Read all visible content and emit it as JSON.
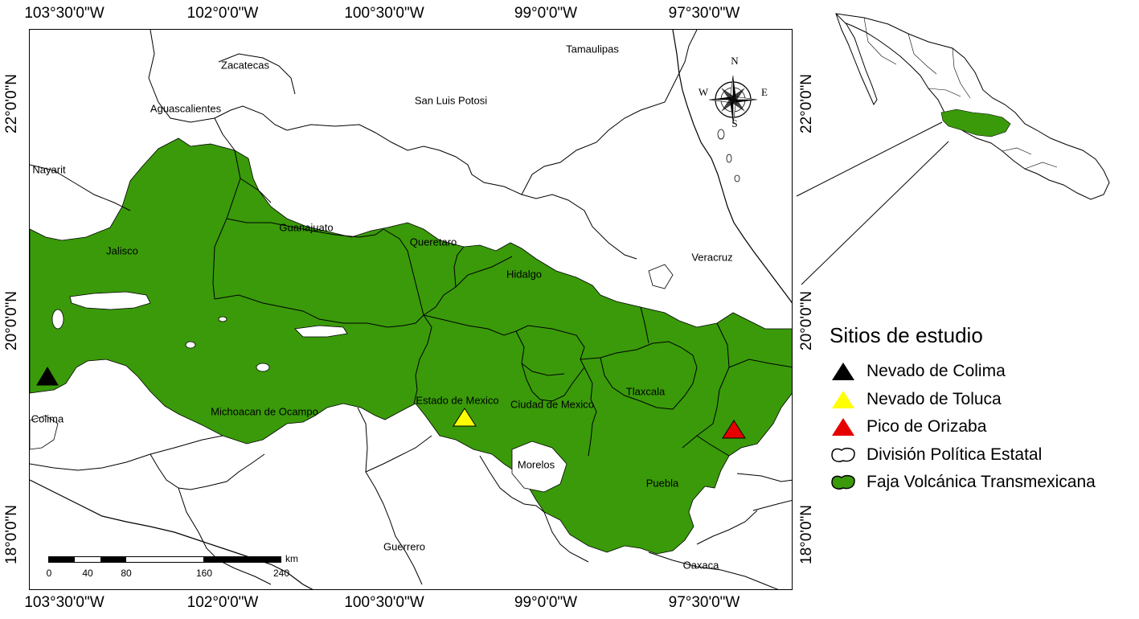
{
  "map": {
    "colors": {
      "belt_fill": "#3a9a0a",
      "state_line": "#000000",
      "nevado_colima": "#000000",
      "nevado_toluca": "#ffff00",
      "pico_orizaba": "#e60000"
    },
    "graticule": {
      "top": [
        "103°30'0\"W",
        "102°0'0\"W",
        "100°30'0\"W",
        "99°0'0\"W",
        "97°30'0\"W"
      ],
      "bottom": [
        "103°30'0\"W",
        "102°0'0\"W",
        "100°30'0\"W",
        "99°0'0\"W",
        "97°30'0\"W"
      ],
      "left": [
        "22°0'0\"N",
        "20°0'0\"N",
        "18°0'0\"N"
      ],
      "right": [
        "22°0'0\"N",
        "20°0'0\"N",
        "18°0'0\"N"
      ]
    },
    "states": {
      "zacatecas": "Zacatecas",
      "tamaulipas": "Tamaulipas",
      "aguascalientes": "Aguascalientes",
      "san_luis_potosi": "San Luis Potosi",
      "nayarit": "Nayarit",
      "guanajuato": "Guanajuato",
      "jalisco": "Jalisco",
      "queretaro": "Queretaro",
      "veracruz": "Veracruz",
      "hidalgo": "Hidalgo",
      "tlaxcala": "Tlaxcala",
      "estado_de_mexico": "Estado de Mexico",
      "ciudad_de_mexico": "Ciudad de Mexico",
      "michoacan": "Michoacan de Ocampo",
      "colima": "Colima",
      "morelos": "Morelos",
      "puebla": "Puebla",
      "guerrero": "Guerrero",
      "oaxaca": "Oaxaca"
    },
    "compass": {
      "n": "N",
      "s": "S",
      "e": "E",
      "w": "W"
    },
    "scale": {
      "unit": "km",
      "ticks": [
        "0",
        "40",
        "80",
        "160",
        "240"
      ]
    }
  },
  "legend": {
    "title": "Sitios de estudio",
    "items": [
      {
        "label": "Nevado de Colima",
        "symbol": "triangle",
        "color": "#000000"
      },
      {
        "label": "Nevado de Toluca",
        "symbol": "triangle",
        "color": "#ffff00"
      },
      {
        "label": "Pico de Orizaba",
        "symbol": "triangle",
        "color": "#e60000"
      },
      {
        "label": "División Política Estatal",
        "symbol": "state-outline"
      },
      {
        "label": "Faja Volcánica Transmexicana",
        "symbol": "belt-fill",
        "color": "#3a9a0a"
      }
    ]
  }
}
